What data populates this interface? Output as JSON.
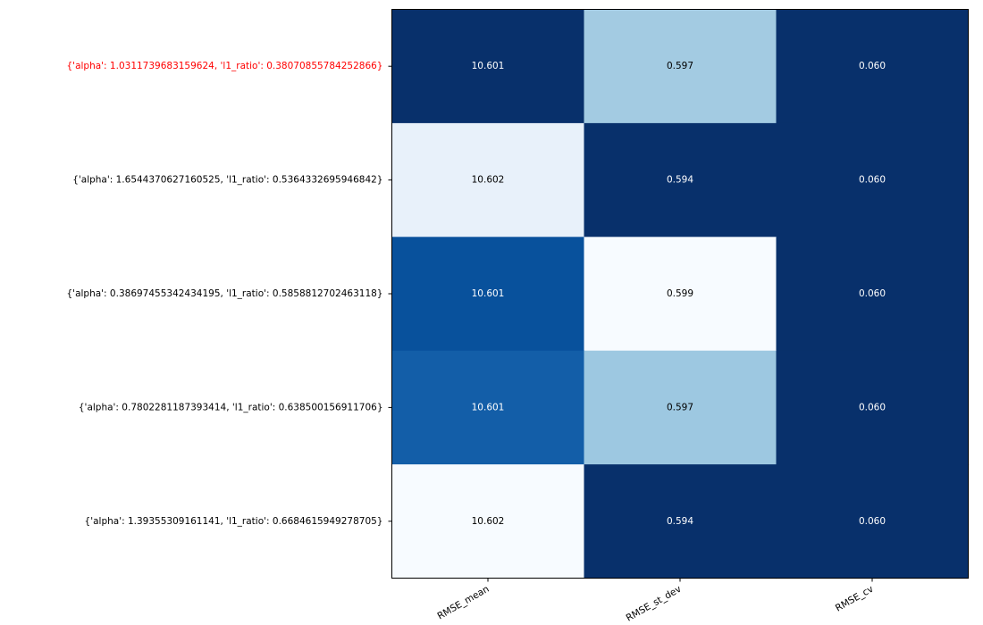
{
  "chart_data": {
    "type": "heatmap",
    "columns": [
      "RMSE_mean",
      "RMSE_st_dev",
      "RMSE_cv"
    ],
    "rows": [
      "{'alpha': 1.0311739683159624, 'l1_ratio': 0.38070855784252866}",
      "{'alpha': 1.6544370627160525, 'l1_ratio': 0.5364332695946842}",
      "{'alpha': 0.38697455342434195, 'l1_ratio': 0.5858812702463118}",
      "{'alpha': 0.7802281187393414, 'l1_ratio': 0.638500156911706}",
      "{'alpha': 1.39355309161141, 'l1_ratio': 0.6684615949278705}"
    ],
    "values": [
      [
        "10.601",
        "0.597",
        "0.060"
      ],
      [
        "10.602",
        "0.594",
        "0.060"
      ],
      [
        "10.601",
        "0.599",
        "0.060"
      ],
      [
        "10.601",
        "0.597",
        "0.060"
      ],
      [
        "10.602",
        "0.594",
        "0.060"
      ]
    ],
    "highlighted_row_index": 0,
    "colormap": "Blues",
    "colors": {
      "highlight_label": "#ff0000",
      "normal_label": "#000000",
      "text_dark": "#000000",
      "text_light": "#ffffff",
      "cells": [
        [
          "#08306b",
          "#a3cbe2",
          "#08306b"
        ],
        [
          "#e8f1fa",
          "#08306b",
          "#08306b"
        ],
        [
          "#08519c",
          "#f7fbff",
          "#08306b"
        ],
        [
          "#135ea8",
          "#9dc8e1",
          "#08306b"
        ],
        [
          "#f7fbff",
          "#08306b",
          "#08306b"
        ]
      ]
    }
  }
}
